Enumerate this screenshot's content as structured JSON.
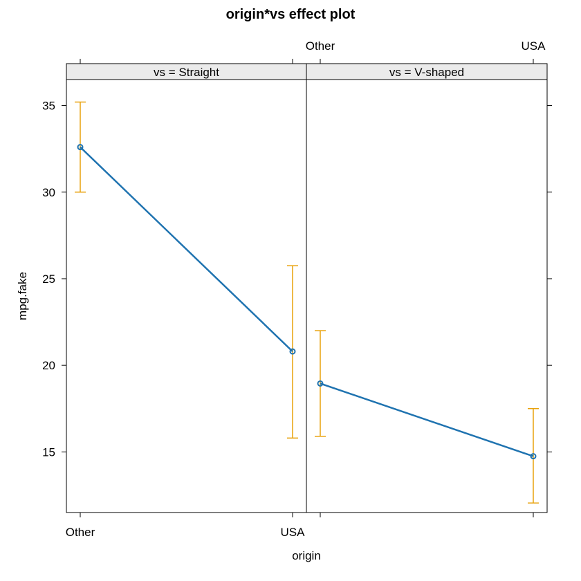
{
  "chart_data": {
    "type": "line",
    "title": "origin*vs effect plot",
    "xlabel": "origin",
    "ylabel": "mpg.fake",
    "categories": [
      "Other",
      "USA"
    ],
    "ylim": [
      11.5,
      36.5
    ],
    "yticks": [
      15,
      20,
      25,
      30,
      35
    ],
    "grid": false,
    "colors": {
      "line": "#1f73b0",
      "errorbar": "#e8a20c",
      "strip_bg": "#ebebeb",
      "frame": "#000000"
    },
    "panels": [
      {
        "strip_label": "vs = Straight",
        "values": [
          32.6,
          20.8
        ],
        "lower": [
          30.0,
          15.8
        ],
        "upper": [
          35.2,
          25.75
        ]
      },
      {
        "strip_label": "vs = V-shaped",
        "values": [
          18.95,
          14.75
        ],
        "lower": [
          15.9,
          12.05
        ],
        "upper": [
          22.0,
          17.5
        ]
      }
    ]
  }
}
